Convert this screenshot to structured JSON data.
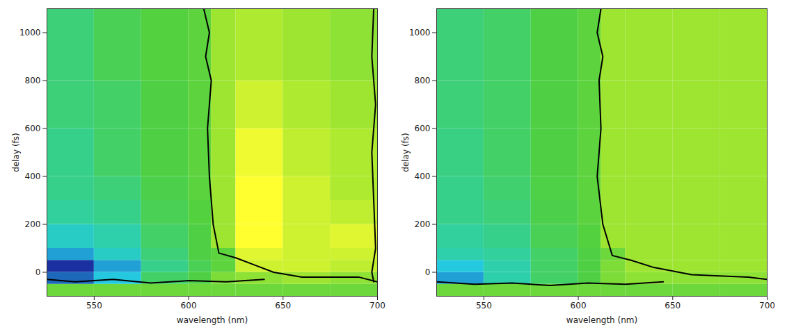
{
  "chart_data": [
    {
      "type": "heatmap",
      "x_label": "wavelength (nm)",
      "y_label": "delay (fs)",
      "xlim": [
        525,
        700
      ],
      "xticks": [
        550,
        600,
        650,
        700
      ],
      "ylim": [
        -100,
        1100
      ],
      "yticks": [
        0,
        200,
        400,
        600,
        800,
        1000
      ],
      "colors": [
        "#1a2fa0",
        "#22c8e8",
        "#30d0a0",
        "#50d040",
        "#a8e830",
        "#ffff30"
      ],
      "wavelength_edges": [
        525,
        550,
        575,
        600,
        612,
        625,
        650,
        675,
        700
      ],
      "delay_edges": [
        -100,
        -50,
        0,
        50,
        100,
        200,
        300,
        400,
        600,
        800,
        1100
      ],
      "cells": [
        [
          0,
          0,
          0,
          0,
          0,
          0,
          0,
          0
        ],
        [
          -0.8,
          -0.6,
          -0.2,
          -0.1,
          0.05,
          0.1,
          0.15,
          0.1
        ],
        [
          -0.9,
          -0.7,
          -0.3,
          -0.15,
          -0.05,
          0.3,
          0.3,
          0.25
        ],
        [
          -0.7,
          -0.5,
          -0.25,
          -0.1,
          -0.05,
          0.35,
          0.3,
          0.3
        ],
        [
          -0.5,
          -0.4,
          -0.2,
          -0.1,
          0.15,
          0.45,
          0.3,
          0.35
        ],
        [
          -0.35,
          -0.3,
          -0.15,
          -0.08,
          0.15,
          0.45,
          0.3,
          0.25
        ],
        [
          -0.3,
          -0.25,
          -0.12,
          -0.06,
          0.15,
          0.45,
          0.3,
          0.2
        ],
        [
          -0.3,
          -0.2,
          -0.1,
          -0.05,
          0.15,
          0.4,
          0.25,
          0.2
        ],
        [
          -0.25,
          -0.2,
          -0.1,
          -0.05,
          0.15,
          0.3,
          0.2,
          0.15
        ],
        [
          -0.25,
          -0.15,
          -0.08,
          -0.05,
          0.15,
          0.2,
          0.15,
          0.1
        ]
      ],
      "contours": [
        {
          "color": "black",
          "wavelength": [
            608,
            611,
            609,
            612,
            610,
            611,
            613,
            616,
            625,
            635,
            645,
            660,
            690,
            700
          ],
          "delay": [
            1100,
            1000,
            900,
            800,
            600,
            400,
            200,
            80,
            60,
            30,
            0,
            -20,
            -20,
            -40
          ]
        },
        {
          "color": "black",
          "wavelength": [
            698,
            697,
            699,
            697,
            698,
            699,
            697,
            698
          ],
          "delay": [
            1100,
            900,
            700,
            500,
            300,
            100,
            0,
            -40
          ]
        },
        {
          "color": "black",
          "wavelength": [
            525,
            540,
            560,
            580,
            600,
            620,
            640
          ],
          "delay": [
            -30,
            -40,
            -30,
            -45,
            -35,
            -40,
            -30
          ]
        }
      ]
    },
    {
      "type": "heatmap",
      "x_label": "wavelength (nm)",
      "y_label": "delay (fs)",
      "xlim": [
        525,
        700
      ],
      "xticks": [
        550,
        600,
        650,
        700
      ],
      "ylim": [
        -100,
        1100
      ],
      "yticks": [
        0,
        200,
        400,
        600,
        800,
        1000
      ],
      "colors": [
        "#1a2fa0",
        "#22c8e8",
        "#30d0a0",
        "#50d040",
        "#a8e830",
        "#ffff30"
      ],
      "wavelength_edges": [
        525,
        550,
        575,
        600,
        612,
        625,
        650,
        675,
        700
      ],
      "delay_edges": [
        -100,
        -50,
        0,
        50,
        100,
        200,
        300,
        400,
        600,
        800,
        1100
      ],
      "cells": [
        [
          0,
          0,
          0,
          0,
          0,
          0,
          0,
          0
        ],
        [
          -0.7,
          -0.4,
          -0.2,
          -0.1,
          0.05,
          0.1,
          0.1,
          0.1
        ],
        [
          -0.6,
          -0.4,
          -0.2,
          -0.1,
          0.05,
          0.15,
          0.15,
          0.15
        ],
        [
          -0.4,
          -0.35,
          -0.2,
          -0.1,
          0,
          0.15,
          0.15,
          0.15
        ],
        [
          -0.35,
          -0.3,
          -0.15,
          -0.08,
          0.15,
          0.15,
          0.15,
          0.15
        ],
        [
          -0.3,
          -0.25,
          -0.12,
          -0.06,
          0.15,
          0.15,
          0.15,
          0.15
        ],
        [
          -0.3,
          -0.22,
          -0.11,
          -0.05,
          0.15,
          0.15,
          0.15,
          0.15
        ],
        [
          -0.28,
          -0.2,
          -0.1,
          -0.05,
          0.15,
          0.15,
          0.15,
          0.15
        ],
        [
          -0.25,
          -0.2,
          -0.1,
          -0.05,
          0.15,
          0.15,
          0.15,
          0.15
        ],
        [
          -0.25,
          -0.2,
          -0.1,
          -0.05,
          0.15,
          0.15,
          0.15,
          0.15
        ]
      ],
      "contours": [
        {
          "color": "black",
          "wavelength": [
            612,
            610,
            613,
            611,
            612,
            610,
            613,
            618,
            628,
            640,
            660,
            690,
            700
          ],
          "delay": [
            1100,
            1000,
            900,
            800,
            600,
            400,
            200,
            70,
            50,
            20,
            -10,
            -20,
            -30
          ]
        },
        {
          "color": "black",
          "wavelength": [
            525,
            545,
            565,
            585,
            605,
            625,
            645
          ],
          "delay": [
            -40,
            -50,
            -45,
            -55,
            -45,
            -50,
            -40
          ]
        }
      ]
    }
  ]
}
